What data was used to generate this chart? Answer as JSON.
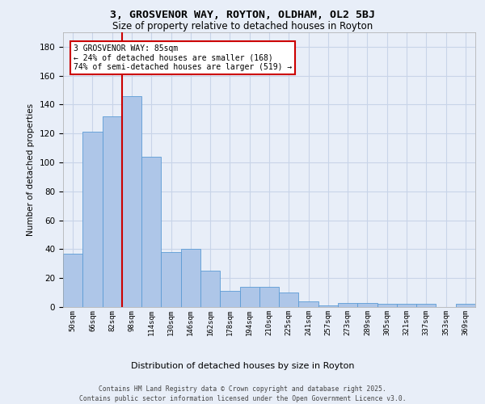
{
  "title1": "3, GROSVENOR WAY, ROYTON, OLDHAM, OL2 5BJ",
  "title2": "Size of property relative to detached houses in Royton",
  "xlabel": "Distribution of detached houses by size in Royton",
  "ylabel": "Number of detached properties",
  "footer1": "Contains HM Land Registry data © Crown copyright and database right 2025.",
  "footer2": "Contains public sector information licensed under the Open Government Licence v3.0.",
  "annotation_line1": "3 GROSVENOR WAY: 85sqm",
  "annotation_line2": "← 24% of detached houses are smaller (168)",
  "annotation_line3": "74% of semi-detached houses are larger (519) →",
  "categories": [
    "50sqm",
    "66sqm",
    "82sqm",
    "98sqm",
    "114sqm",
    "130sqm",
    "146sqm",
    "162sqm",
    "178sqm",
    "194sqm",
    "210sqm",
    "225sqm",
    "241sqm",
    "257sqm",
    "273sqm",
    "289sqm",
    "305sqm",
    "321sqm",
    "337sqm",
    "353sqm",
    "369sqm"
  ],
  "values": [
    37,
    121,
    132,
    146,
    104,
    38,
    40,
    25,
    11,
    14,
    14,
    10,
    4,
    1,
    3,
    3,
    2,
    2,
    2,
    0,
    2
  ],
  "bar_color": "#aec6e8",
  "bar_edge_color": "#5b9bd5",
  "grid_color": "#c8d4e8",
  "background_color": "#e8eef8",
  "vline_color": "#cc0000",
  "vline_x_index": 2,
  "annotation_edge_color": "#cc0000",
  "ylim": [
    0,
    190
  ],
  "yticks": [
    0,
    20,
    40,
    60,
    80,
    100,
    120,
    140,
    160,
    180
  ]
}
